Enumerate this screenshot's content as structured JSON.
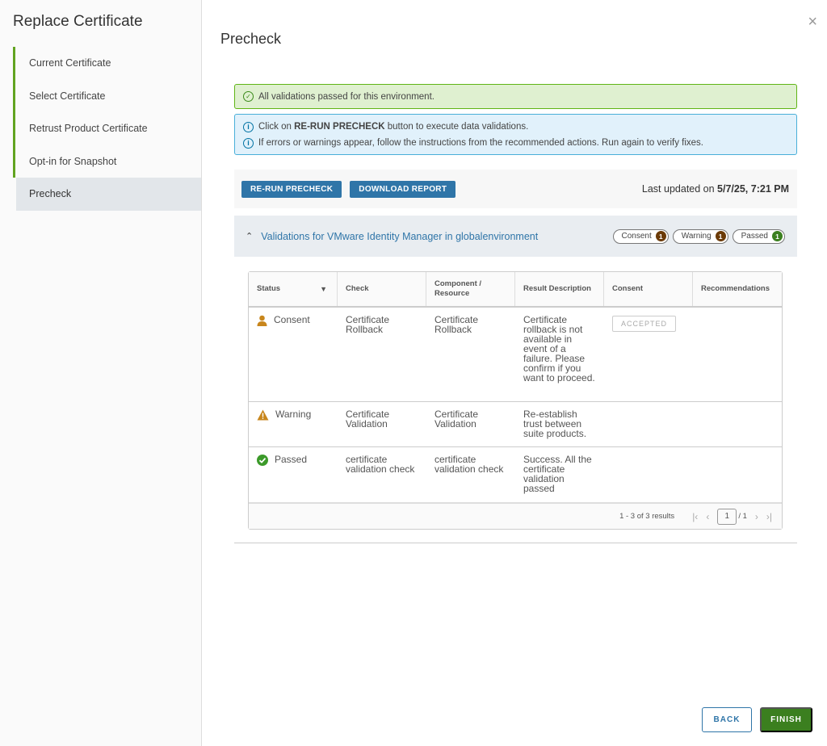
{
  "wizard": {
    "title": "Replace Certificate",
    "steps": [
      {
        "label": "Current Certificate"
      },
      {
        "label": "Select Certificate"
      },
      {
        "label": "Retrust Product Certificate"
      },
      {
        "label": "Opt-in for Snapshot"
      },
      {
        "label": "Precheck"
      }
    ],
    "close_icon": "×"
  },
  "main": {
    "title": "Precheck",
    "success_alert": "All validations passed for this environment.",
    "info_alert": {
      "line1_prefix": "Click on ",
      "line1_bold": "RE-RUN PRECHECK",
      "line1_suffix": " button to execute data validations.",
      "line2": "If errors or warnings appear, follow the instructions from the recommended actions. Run again to verify fixes."
    },
    "toolbar": {
      "rerun_label": "RE-RUN PRECHECK",
      "download_label": "DOWNLOAD REPORT",
      "updated_prefix": "Last updated on ",
      "updated_value": "5/7/25, 7:21 PM"
    },
    "group": {
      "title": "Validations for VMware Identity Manager in globalenvironment",
      "pills": [
        {
          "label": "Consent",
          "count": "1",
          "color": "#6b3a07"
        },
        {
          "label": "Warning",
          "count": "1",
          "color": "#6b3a07"
        },
        {
          "label": "Passed",
          "count": "1",
          "color": "#3b7f1f"
        }
      ]
    },
    "table": {
      "columns": [
        "Status",
        "Check",
        "Component / Resource",
        "Result Description",
        "Consent",
        "Recommendations"
      ],
      "rows": [
        {
          "status": "Consent",
          "check": "Certificate Rollback",
          "component": "Certificate Rollback",
          "result": "Certificate rollback is not available in event of a failure. Please confirm if you want to proceed.",
          "consent": "ACCEPTED",
          "recommendations": ""
        },
        {
          "status": "Warning",
          "check": "Certificate Validation",
          "component": "Certificate Validation",
          "result": "Re-establish trust between suite products.",
          "consent": "",
          "recommendations": ""
        },
        {
          "status": "Passed",
          "check": "certificate validation check",
          "component": "certificate validation check",
          "result": "Success. All the certificate validation passed",
          "consent": "",
          "recommendations": ""
        }
      ],
      "footer": {
        "summary": "1 - 3 of 3 results",
        "page": "1",
        "total_pages": "/ 1"
      }
    },
    "back_label": "BACK",
    "finish_label": "FINISH"
  }
}
